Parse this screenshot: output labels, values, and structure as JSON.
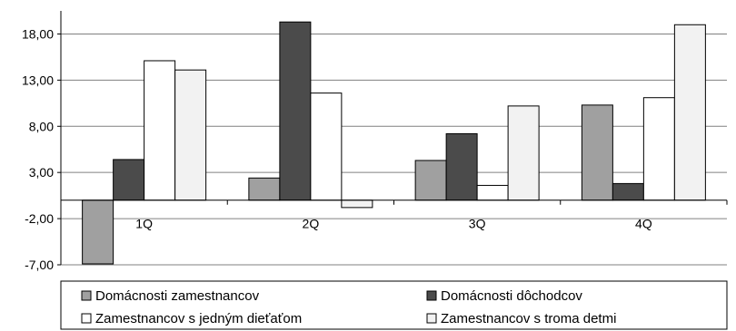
{
  "chart_data": {
    "type": "bar",
    "categories": [
      "1Q",
      "2Q",
      "3Q",
      "4Q"
    ],
    "series": [
      {
        "name": "Domácnosti zamestnancov",
        "values": [
          -6.9,
          2.4,
          4.3,
          10.3
        ]
      },
      {
        "name": "Domácnosti dôchodcov",
        "values": [
          4.4,
          19.3,
          7.2,
          1.8
        ]
      },
      {
        "name": "Zamestnancov s jedným dieťaťom",
        "values": [
          15.1,
          11.6,
          1.6,
          11.1
        ]
      },
      {
        "name": "Zamestnancov s troma detmi",
        "values": [
          14.1,
          -0.8,
          10.2,
          19.0
        ]
      }
    ],
    "ylim": [
      -7.0,
      20.5
    ],
    "yticks": [
      -7,
      -2,
      3,
      8,
      13,
      18
    ],
    "ytick_labels": [
      "-7,00",
      "-2,00",
      "3,00",
      "8,00",
      "13,00",
      "18,00"
    ],
    "title": "",
    "xlabel": "",
    "ylabel": "",
    "grid": true,
    "legend_position": "bottom",
    "colors": {
      "series": [
        "#a0a0a0",
        "#4b4b4b",
        "#ffffff",
        "#f2f2f2"
      ],
      "bar_stroke": "#000000",
      "grid": "#808080",
      "axis": "#000000",
      "background": "#ffffff"
    }
  }
}
